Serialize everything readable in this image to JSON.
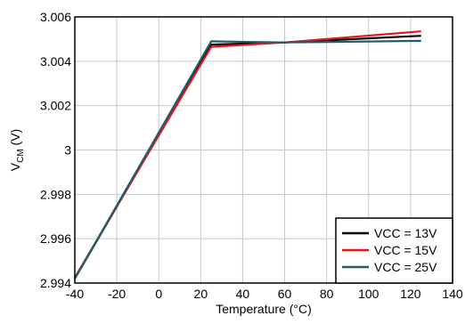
{
  "chart_data": {
    "type": "line",
    "xlabel": "Temperature (°C)",
    "ylabel_main": "V",
    "ylabel_sub": "CM",
    "ylabel_suffix": " (V)",
    "xlim": [
      -40,
      140
    ],
    "ylim": [
      2.994,
      3.006
    ],
    "xticks": [
      -40,
      -20,
      0,
      20,
      40,
      60,
      80,
      100,
      120,
      140
    ],
    "yticks": [
      2.994,
      2.996,
      2.998,
      3,
      3.002,
      3.004,
      3.006
    ],
    "ytick_labels": [
      "2.994",
      "2.996",
      "2.998",
      "3",
      "3.002",
      "3.004",
      "3.006"
    ],
    "grid": true,
    "legend_position": "bottom-right",
    "series": [
      {
        "name": "VCC = 13V",
        "color": "#000000",
        "x": [
          -40,
          25,
          60,
          125
        ],
        "y": [
          2.9942,
          3.00475,
          3.00485,
          3.00515
        ]
      },
      {
        "name": "VCC = 15V",
        "color": "#e8141e",
        "x": [
          -40,
          25,
          60,
          125
        ],
        "y": [
          2.99425,
          3.00465,
          3.00485,
          3.00535
        ]
      },
      {
        "name": "VCC = 25V",
        "color": "#1d5d6c",
        "x": [
          -40,
          25,
          60,
          125
        ],
        "y": [
          2.9942,
          3.0049,
          3.00485,
          3.00492
        ]
      }
    ]
  }
}
